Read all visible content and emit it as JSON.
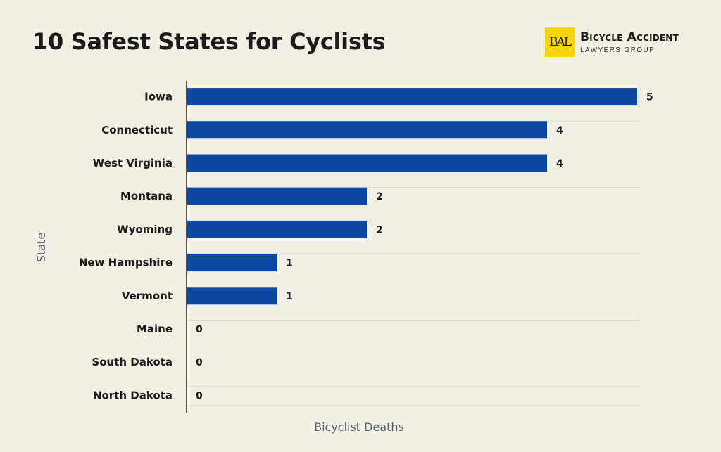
{
  "header": {
    "title": "10 Safest States for Cyclists"
  },
  "logo": {
    "mark": "BAL",
    "line1": "Bicycle Accident",
    "line2": "LAWYERS GROUP",
    "color": "#f6d40b"
  },
  "chart_data": {
    "type": "bar",
    "orientation": "horizontal",
    "title": "10 Safest States for Cyclists",
    "xlabel": "Bicyclist Deaths",
    "ylabel": "State",
    "categories": [
      "Iowa",
      "Connecticut",
      "West Virginia",
      "Montana",
      "Wyoming",
      "New Hampshire",
      "Vermont",
      "Maine",
      "South Dakota",
      "North Dakota"
    ],
    "values": [
      5,
      4,
      4,
      2,
      2,
      1,
      1,
      0,
      0,
      0
    ],
    "xlim": [
      0,
      5
    ],
    "grid": true,
    "bar_color": "#0f47a1",
    "data_labels": true
  }
}
